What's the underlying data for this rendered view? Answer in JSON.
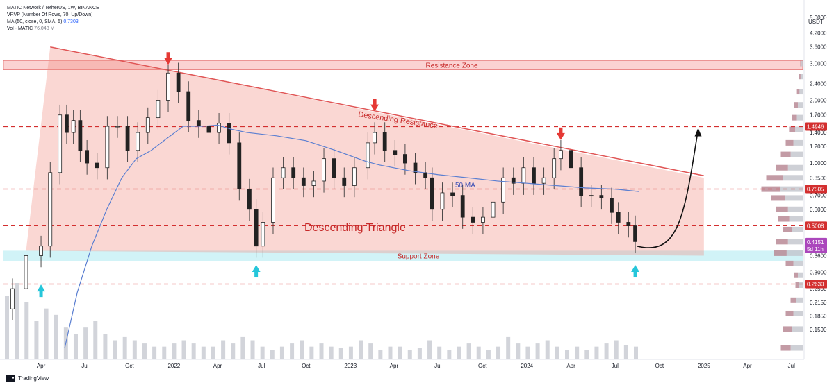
{
  "header": {
    "symbol_line": "MATIC Network / TetherUS, 1W, BINANCE",
    "vrvp_line": "VRVP (Number Of Rows, 70, Up/Down)",
    "ma_label": "MA (50, close, 0, SMA, 5)",
    "ma_value": "0.7303",
    "vol_label": "Vol - MATIC",
    "vol_value": "76.048 M"
  },
  "footer": {
    "brand": "TradingView"
  },
  "chart_data": {
    "type": "candlestick",
    "currency": "USDT",
    "price_scale": "log",
    "ylim": [
      0.12,
      5.6
    ],
    "y_ticks": [
      "5.0000",
      "4.2000",
      "3.6000",
      "3.0000",
      "2.4000",
      "2.0000",
      "1.7000",
      "1.4000",
      "1.2000",
      "1.0000",
      "0.8500",
      "0.7000",
      "0.6000",
      "0.5000",
      "0.3600",
      "0.3000",
      "0.2500",
      "0.2150",
      "0.1850",
      "0.1590"
    ],
    "x_ticks": [
      {
        "label": "Apr",
        "date": "2021-04-01"
      },
      {
        "label": "Jul",
        "date": "2021-07-01"
      },
      {
        "label": "Oct",
        "date": "2021-10-01"
      },
      {
        "label": "2022",
        "date": "2022-01-01"
      },
      {
        "label": "Apr",
        "date": "2022-04-01"
      },
      {
        "label": "Jul",
        "date": "2022-07-01"
      },
      {
        "label": "Oct",
        "date": "2022-10-01"
      },
      {
        "label": "2023",
        "date": "2023-01-01"
      },
      {
        "label": "Apr",
        "date": "2023-04-01"
      },
      {
        "label": "Jul",
        "date": "2023-07-01"
      },
      {
        "label": "Oct",
        "date": "2023-10-01"
      },
      {
        "label": "2024",
        "date": "2024-01-01"
      },
      {
        "label": "Apr",
        "date": "2024-04-01"
      },
      {
        "label": "Jul",
        "date": "2024-07-01"
      },
      {
        "label": "Oct",
        "date": "2024-10-01"
      },
      {
        "label": "2025",
        "date": "2025-01-01"
      },
      {
        "label": "Apr",
        "date": "2025-04-01"
      },
      {
        "label": "Jul",
        "date": "2025-07-01"
      }
    ],
    "series": [
      {
        "type": "close",
        "points": [
          [
            "2021-02-01",
            0.25
          ],
          [
            "2021-03-01",
            0.36
          ],
          [
            "2021-04-01",
            0.4
          ],
          [
            "2021-04-20",
            0.9
          ],
          [
            "2021-05-10",
            1.7
          ],
          [
            "2021-05-24",
            1.4
          ],
          [
            "2021-06-07",
            1.6
          ],
          [
            "2021-06-21",
            1.15
          ],
          [
            "2021-07-05",
            1.0
          ],
          [
            "2021-07-26",
            0.95
          ],
          [
            "2021-08-16",
            1.5
          ],
          [
            "2021-09-06",
            1.5
          ],
          [
            "2021-09-27",
            1.15
          ],
          [
            "2021-10-18",
            1.4
          ],
          [
            "2021-11-08",
            1.65
          ],
          [
            "2021-11-29",
            2.0
          ],
          [
            "2021-12-20",
            2.7
          ],
          [
            "2022-01-10",
            2.2
          ],
          [
            "2022-01-31",
            1.6
          ],
          [
            "2022-02-21",
            1.5
          ],
          [
            "2022-03-14",
            1.4
          ],
          [
            "2022-04-04",
            1.55
          ],
          [
            "2022-04-25",
            1.25
          ],
          [
            "2022-05-16",
            0.75
          ],
          [
            "2022-06-06",
            0.6
          ],
          [
            "2022-06-20",
            0.4
          ],
          [
            "2022-07-04",
            0.52
          ],
          [
            "2022-07-25",
            0.85
          ],
          [
            "2022-08-15",
            0.95
          ],
          [
            "2022-09-05",
            0.85
          ],
          [
            "2022-09-26",
            0.78
          ],
          [
            "2022-10-17",
            0.82
          ],
          [
            "2022-11-07",
            1.05
          ],
          [
            "2022-11-28",
            0.85
          ],
          [
            "2022-12-19",
            0.78
          ],
          [
            "2023-01-09",
            0.95
          ],
          [
            "2023-02-06",
            1.25
          ],
          [
            "2023-02-20",
            1.4
          ],
          [
            "2023-03-13",
            1.15
          ],
          [
            "2023-04-03",
            1.1
          ],
          [
            "2023-04-24",
            1.0
          ],
          [
            "2023-05-15",
            0.9
          ],
          [
            "2023-06-05",
            0.85
          ],
          [
            "2023-06-19",
            0.6
          ],
          [
            "2023-07-10",
            0.72
          ],
          [
            "2023-07-31",
            0.7
          ],
          [
            "2023-08-21",
            0.55
          ],
          [
            "2023-09-11",
            0.52
          ],
          [
            "2023-10-02",
            0.55
          ],
          [
            "2023-10-23",
            0.65
          ],
          [
            "2023-11-13",
            0.85
          ],
          [
            "2023-12-04",
            0.8
          ],
          [
            "2023-12-25",
            0.95
          ],
          [
            "2024-01-15",
            0.8
          ],
          [
            "2024-02-05",
            0.85
          ],
          [
            "2024-02-26",
            1.05
          ],
          [
            "2024-03-11",
            1.15
          ],
          [
            "2024-04-01",
            0.95
          ],
          [
            "2024-04-22",
            0.7
          ],
          [
            "2024-05-13",
            0.7
          ],
          [
            "2024-06-03",
            0.68
          ],
          [
            "2024-06-24",
            0.58
          ],
          [
            "2024-07-08",
            0.52
          ],
          [
            "2024-07-29",
            0.5
          ],
          [
            "2024-08-12",
            0.42
          ]
        ]
      },
      {
        "name": "50 MA",
        "type": "line",
        "points": [
          [
            "2021-05-20",
            0.13
          ],
          [
            "2021-06-15",
            0.24
          ],
          [
            "2021-07-15",
            0.4
          ],
          [
            "2021-08-15",
            0.6
          ],
          [
            "2021-09-15",
            0.85
          ],
          [
            "2021-10-15",
            1.05
          ],
          [
            "2021-11-15",
            1.15
          ],
          [
            "2021-12-15",
            1.3
          ],
          [
            "2022-01-20",
            1.5
          ],
          [
            "2022-03-01",
            1.5
          ],
          [
            "2022-04-01",
            1.52
          ],
          [
            "2022-05-01",
            1.45
          ],
          [
            "2022-06-01",
            1.4
          ],
          [
            "2022-08-01",
            1.35
          ],
          [
            "2022-10-01",
            1.28
          ],
          [
            "2022-12-01",
            1.15
          ],
          [
            "2023-02-01",
            1.02
          ],
          [
            "2023-03-01",
            0.98
          ],
          [
            "2023-05-01",
            0.92
          ],
          [
            "2023-07-01",
            0.88
          ],
          [
            "2023-09-01",
            0.85
          ],
          [
            "2023-11-01",
            0.82
          ],
          [
            "2024-01-01",
            0.8
          ],
          [
            "2024-03-01",
            0.78
          ],
          [
            "2024-05-01",
            0.76
          ],
          [
            "2024-07-01",
            0.75
          ],
          [
            "2024-08-20",
            0.73
          ]
        ]
      }
    ],
    "volume": [
      1.0,
      1.2,
      0.9,
      0.6,
      0.8,
      0.7,
      0.5,
      0.4,
      0.5,
      0.6,
      0.4,
      0.3,
      0.35,
      0.3,
      0.25,
      0.2,
      0.2,
      0.25,
      0.3,
      0.25,
      0.2,
      0.2,
      0.3,
      0.25,
      0.35,
      0.3,
      0.2,
      0.15,
      0.2,
      0.25,
      0.3,
      0.2,
      0.25,
      0.2,
      0.18,
      0.2,
      0.3,
      0.25,
      0.15,
      0.2,
      0.2,
      0.15,
      0.18,
      0.3,
      0.2,
      0.15,
      0.2,
      0.25,
      0.2,
      0.15,
      0.2,
      0.35,
      0.25,
      0.2,
      0.25,
      0.3,
      0.2,
      0.15,
      0.2,
      0.15,
      0.2,
      0.25,
      0.3,
      0.22,
      0.2
    ],
    "volume_profile": [
      {
        "price": 3.0,
        "size": 0.05
      },
      {
        "price": 2.6,
        "size": 0.08
      },
      {
        "price": 2.2,
        "size": 0.12
      },
      {
        "price": 1.9,
        "size": 0.18
      },
      {
        "price": 1.65,
        "size": 0.22
      },
      {
        "price": 1.45,
        "size": 0.28
      },
      {
        "price": 1.25,
        "size": 0.35
      },
      {
        "price": 1.1,
        "size": 0.45
      },
      {
        "price": 0.95,
        "size": 0.55
      },
      {
        "price": 0.85,
        "size": 0.75
      },
      {
        "price": 0.75,
        "size": 0.85
      },
      {
        "price": 0.68,
        "size": 0.65
      },
      {
        "price": 0.6,
        "size": 0.55
      },
      {
        "price": 0.54,
        "size": 0.5
      },
      {
        "price": 0.48,
        "size": 0.4
      },
      {
        "price": 0.42,
        "size": 0.55
      },
      {
        "price": 0.37,
        "size": 0.6
      },
      {
        "price": 0.33,
        "size": 0.35
      },
      {
        "price": 0.29,
        "size": 0.18
      },
      {
        "price": 0.26,
        "size": 0.15
      },
      {
        "price": 0.22,
        "size": 0.25
      },
      {
        "price": 0.19,
        "size": 0.35
      },
      {
        "price": 0.16,
        "size": 0.4
      },
      {
        "price": 0.13,
        "size": 0.45
      }
    ],
    "zones": [
      {
        "label": "Resistance Zone",
        "from": 2.8,
        "to": 3.1,
        "color": "#f8b4b4"
      },
      {
        "label": "Support Zone",
        "from": 0.34,
        "to": 0.38,
        "color": "#b2ebf2"
      }
    ],
    "levels": [
      {
        "price": 1.4946,
        "label": "1.4946"
      },
      {
        "price": 0.7505,
        "label": "0.7505"
      },
      {
        "price": 0.5008,
        "label": "0.5008"
      },
      {
        "price": 0.263,
        "label": "0.2630"
      }
    ],
    "triangle": {
      "label": "Descending Triangle",
      "points": [
        [
          "2021-03-01",
          0.38
        ],
        [
          "2021-04-20",
          3.6
        ],
        [
          "2025-01-01",
          0.85
        ],
        [
          "2025-01-01",
          0.36
        ]
      ]
    },
    "resistance_line": {
      "label": "Descending Resistance",
      "from": [
        "2021-04-20",
        3.6
      ],
      "to": [
        "2025-01-01",
        0.87
      ]
    },
    "projection": {
      "from": [
        "2024-08-15",
        0.4
      ],
      "to": [
        "2024-12-20",
        1.45
      ]
    },
    "markers": [
      {
        "type": "down",
        "date": "2021-12-20",
        "price": 3.1,
        "color": "#e53935"
      },
      {
        "type": "down",
        "date": "2023-02-20",
        "price": 1.85,
        "color": "#e53935"
      },
      {
        "type": "down",
        "date": "2024-03-11",
        "price": 1.35,
        "color": "#e53935"
      },
      {
        "type": "up",
        "date": "2021-04-01",
        "price": 0.25,
        "color": "#26c6da"
      },
      {
        "type": "up",
        "date": "2022-06-20",
        "price": 0.31,
        "color": "#26c6da"
      },
      {
        "type": "up",
        "date": "2024-08-12",
        "price": 0.31,
        "color": "#26c6da"
      }
    ],
    "last_price": {
      "value": "0.4151",
      "countdown": "5d 11h"
    },
    "annotations": [
      "50 MA",
      "Descending Resistance",
      "Descending Triangle",
      "Resistance Zone",
      "Support Zone"
    ]
  }
}
